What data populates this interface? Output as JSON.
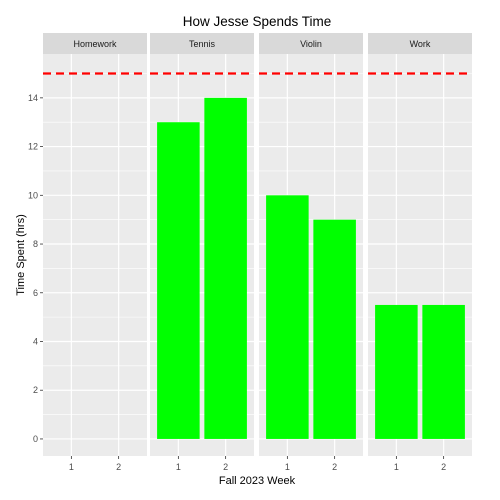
{
  "chart_data": {
    "type": "bar",
    "title": "How Jesse Spends Time",
    "xlabel": "Fall 2023 Week",
    "ylabel": "Time Spent (hrs)",
    "facets": [
      "Homework",
      "Tennis",
      "Violin",
      "Work"
    ],
    "categories": [
      "1",
      "2"
    ],
    "series": [
      {
        "facet": "Homework",
        "values": [
          0,
          0
        ]
      },
      {
        "facet": "Tennis",
        "values": [
          13,
          14
        ]
      },
      {
        "facet": "Violin",
        "values": [
          10,
          9
        ]
      },
      {
        "facet": "Work",
        "values": [
          5.5,
          5.5
        ]
      }
    ],
    "reference_line": {
      "y": 15,
      "color": "#ff0000",
      "style": "dashed"
    },
    "ylim": [
      -0.7,
      15.8
    ],
    "yticks": [
      0,
      2,
      4,
      6,
      8,
      10,
      12,
      14
    ],
    "grid": true,
    "legend": "none",
    "colors": {
      "bar": "#00ff00",
      "panel": "#ebebeb",
      "strip": "#d9d9d9",
      "grid": "#ffffff"
    }
  }
}
